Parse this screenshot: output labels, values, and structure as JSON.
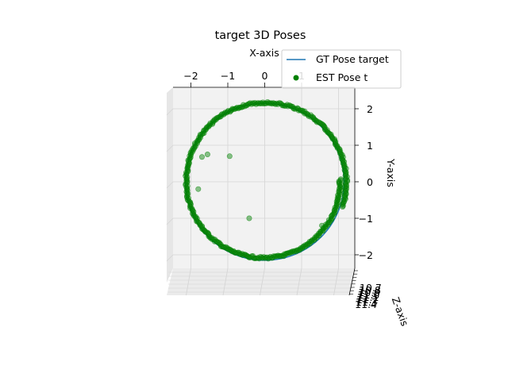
{
  "chart_data": {
    "type": "scatter",
    "title": "target 3D Poses",
    "xlabel": "X-axis",
    "ylabel": "Y-axis",
    "zlabel": "Z-axis",
    "xlim": [
      -2.3,
      2.3
    ],
    "ylim": [
      -2.3,
      2.3
    ],
    "xticks": [
      "−2",
      "−1",
      "0",
      "1"
    ],
    "yticks": [
      "2",
      "1",
      "0",
      "−1",
      "−2"
    ],
    "zticks": [
      "10.7",
      "10.8",
      "10.9",
      "11.0",
      "11.1",
      "11.2",
      "11.3",
      "11.4"
    ],
    "grid": true,
    "legend_position": "upper right",
    "gt_series": {
      "name": "GT Pose target",
      "color": "#1f77b4",
      "shape": "circle",
      "center": [
        0,
        0
      ],
      "radius": 2.15
    },
    "est_series": {
      "name": "EST Pose t",
      "color": "#008000",
      "shape": "open spiral",
      "start_angle_deg": -18,
      "end_angle_deg": 362,
      "radius_start": 2.22,
      "radius_end": 2.04,
      "samples": 460,
      "outliers": [
        {
          "x": -1.55,
          "y": 0.75
        },
        {
          "x": -1.7,
          "y": 0.68
        },
        {
          "x": -0.95,
          "y": 0.7
        },
        {
          "x": -1.8,
          "y": -0.2
        },
        {
          "x": -0.42,
          "y": -1.0
        },
        {
          "x": 1.55,
          "y": -1.2
        }
      ]
    }
  }
}
